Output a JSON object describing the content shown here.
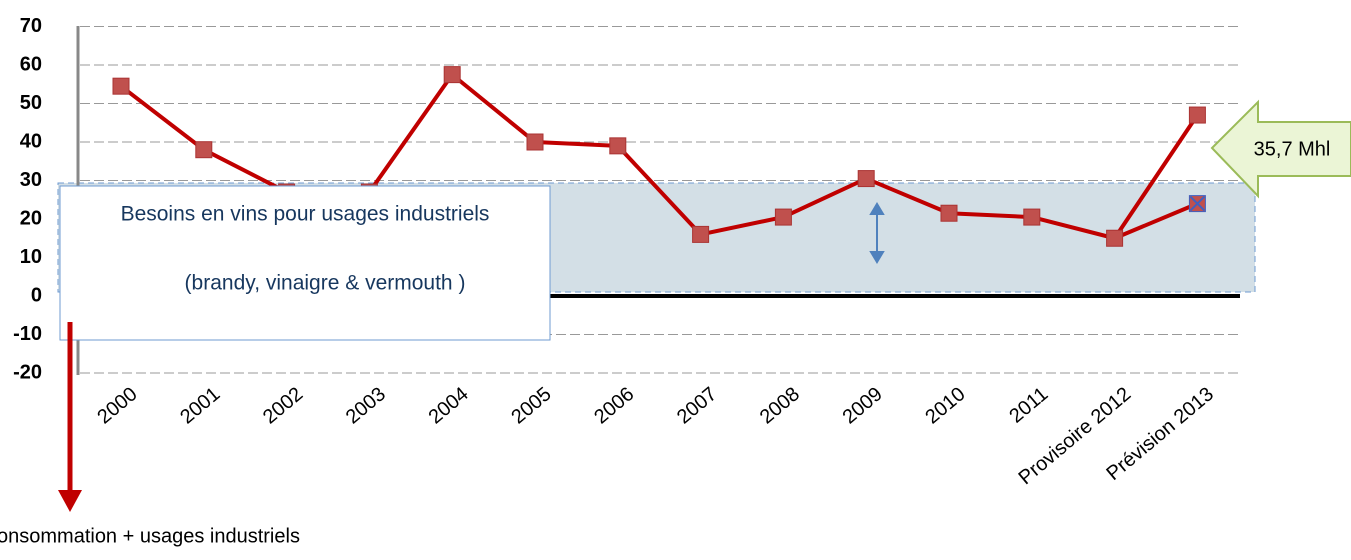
{
  "chart_data": {
    "type": "line",
    "categories": [
      "2000",
      "2001",
      "2002",
      "2003",
      "2004",
      "2005",
      "2006",
      "2007",
      "2008",
      "2009",
      "2010",
      "2011",
      "Provisoire 2012",
      "Prévision 2013"
    ],
    "series": [
      {
        "color": "#c00000",
        "marker_color": "#c0504d",
        "values": [
          54.5,
          38,
          27,
          27,
          57.5,
          40,
          39,
          16,
          20.5,
          30.5,
          21.5,
          20.5,
          15,
          47
        ]
      },
      {
        "color": "#c00000",
        "marker_color": "#c0504d",
        "values": [
          null,
          null,
          null,
          null,
          null,
          null,
          null,
          null,
          null,
          null,
          null,
          null,
          15,
          24
        ]
      }
    ],
    "ylim": [
      -20,
      70
    ],
    "yticks": [
      -20,
      -10,
      0,
      10,
      20,
      30,
      40,
      50,
      60,
      70
    ],
    "grid": true,
    "annotations": {
      "box": "Besoins en vins pour usages industriels",
      "box_sub": "(brandy, vinaigre & vermouth )",
      "callout": "35,7 Mhl",
      "note": "onsommation + usages industriels"
    }
  }
}
